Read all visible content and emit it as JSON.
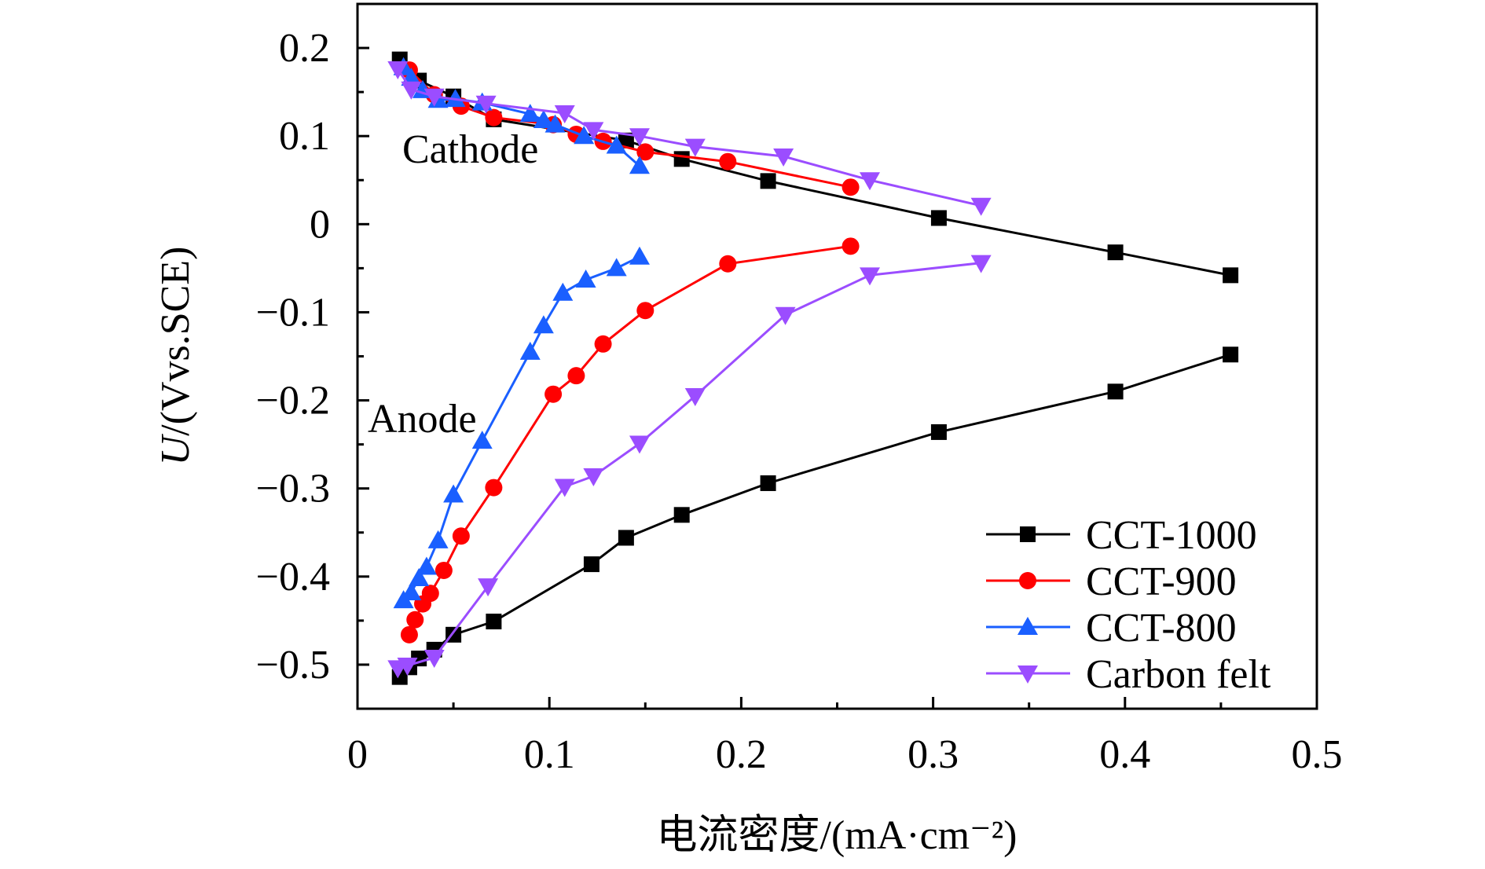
{
  "chart_data": {
    "type": "line",
    "xlabel": "电流密度/(mA·cm⁻²)",
    "ylabel_italic": "U",
    "ylabel_rest": "/(Vvs.SCE)",
    "xlim": [
      0,
      0.5
    ],
    "ylim": [
      -0.55,
      0.25
    ],
    "x_ticks": [
      0,
      0.1,
      0.2,
      0.3,
      0.4,
      0.5
    ],
    "x_tick_labels": [
      "0",
      "0.1",
      "0.2",
      "0.3",
      "0.4",
      "0.5"
    ],
    "y_ticks": [
      0.2,
      0.1,
      0,
      -0.1,
      -0.2,
      -0.3,
      -0.4,
      -0.5
    ],
    "y_tick_labels": [
      "0.2",
      "0.1",
      "0",
      "−0.1",
      "−0.2",
      "−0.3",
      "−0.4",
      "−0.5"
    ],
    "annotations": {
      "cathode": "Cathode",
      "anode": "Anode"
    },
    "legend_position": "bottom-right",
    "series": [
      {
        "name": "CCT-1000",
        "color": "#000000",
        "marker": "square",
        "cathode": {
          "x": [
            0.022,
            0.032,
            0.05,
            0.071,
            0.14,
            0.169,
            0.214,
            0.303,
            0.395,
            0.455
          ],
          "y": [
            0.187,
            0.163,
            0.145,
            0.119,
            0.095,
            0.074,
            0.049,
            0.007,
            -0.032,
            -0.058
          ]
        },
        "anode": {
          "x": [
            0.022,
            0.027,
            0.032,
            0.04,
            0.05,
            0.071,
            0.122,
            0.14,
            0.169,
            0.214,
            0.303,
            0.395,
            0.455
          ],
          "y": [
            -0.514,
            -0.503,
            -0.493,
            -0.483,
            -0.466,
            -0.451,
            -0.386,
            -0.356,
            -0.33,
            -0.294,
            -0.236,
            -0.19,
            -0.148
          ]
        }
      },
      {
        "name": "CCT-900",
        "color": "#ff0000",
        "marker": "circle",
        "cathode": {
          "x": [
            0.027,
            0.04,
            0.054,
            0.071,
            0.102,
            0.114,
            0.128,
            0.15,
            0.193,
            0.257
          ],
          "y": [
            0.175,
            0.147,
            0.134,
            0.121,
            0.113,
            0.102,
            0.094,
            0.082,
            0.071,
            0.042
          ]
        },
        "anode": {
          "x": [
            0.027,
            0.03,
            0.034,
            0.038,
            0.045,
            0.054,
            0.071,
            0.102,
            0.114,
            0.128,
            0.15,
            0.193,
            0.257
          ],
          "y": [
            -0.466,
            -0.449,
            -0.431,
            -0.419,
            -0.393,
            -0.354,
            -0.299,
            -0.193,
            -0.172,
            -0.136,
            -0.098,
            -0.045,
            -0.025
          ]
        }
      },
      {
        "name": "CCT-800",
        "color": "#1a5fff",
        "marker": "triangle-up",
        "cathode": {
          "x": [
            0.024,
            0.028,
            0.034,
            0.042,
            0.051,
            0.065,
            0.09,
            0.097,
            0.103,
            0.118,
            0.135,
            0.147
          ],
          "y": [
            0.178,
            0.166,
            0.152,
            0.141,
            0.142,
            0.138,
            0.125,
            0.118,
            0.113,
            0.1,
            0.089,
            0.066
          ]
        },
        "anode": {
          "x": [
            0.024,
            0.028,
            0.032,
            0.036,
            0.042,
            0.05,
            0.065,
            0.09,
            0.097,
            0.107,
            0.119,
            0.135,
            0.147
          ],
          "y": [
            -0.427,
            -0.418,
            -0.402,
            -0.389,
            -0.359,
            -0.307,
            -0.246,
            -0.145,
            -0.115,
            -0.078,
            -0.063,
            -0.05,
            -0.037
          ]
        }
      },
      {
        "name": "Carbon felt",
        "color": "#9b4dff",
        "marker": "triangle-down",
        "cathode": {
          "x": [
            0.021,
            0.028,
            0.04,
            0.067,
            0.108,
            0.123,
            0.147,
            0.176,
            0.222,
            0.267,
            0.325
          ],
          "y": [
            0.176,
            0.153,
            0.145,
            0.137,
            0.126,
            0.107,
            0.1,
            0.088,
            0.077,
            0.05,
            0.021
          ]
        },
        "anode": {
          "x": [
            0.021,
            0.026,
            0.04,
            0.068,
            0.108,
            0.123,
            0.147,
            0.176,
            0.223,
            0.267,
            0.325
          ],
          "y": [
            -0.504,
            -0.501,
            -0.492,
            -0.411,
            -0.298,
            -0.286,
            -0.249,
            -0.195,
            -0.103,
            -0.058,
            -0.044
          ]
        }
      }
    ]
  }
}
